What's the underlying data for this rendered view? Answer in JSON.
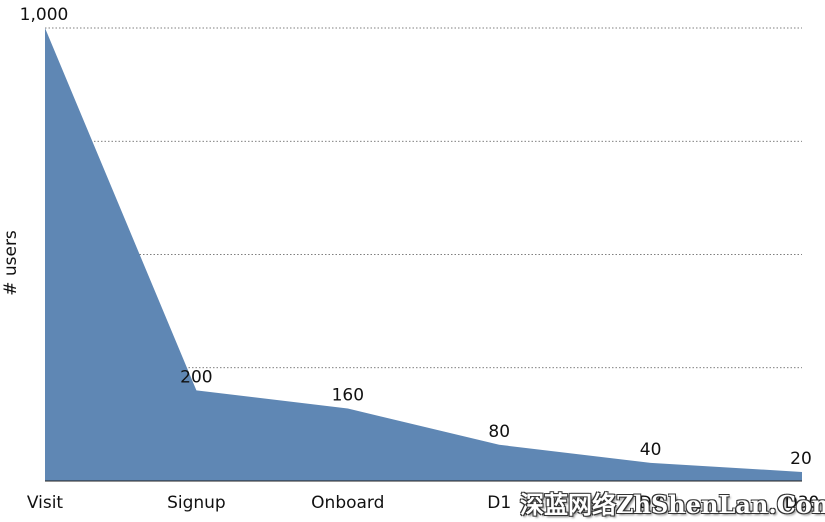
{
  "chart_data": {
    "type": "area",
    "categories": [
      "Visit",
      "Signup",
      "Onboard",
      "D1",
      "D7",
      "D30"
    ],
    "values": [
      1000,
      200,
      160,
      80,
      40,
      20
    ],
    "value_labels": [
      "1,000",
      "200",
      "160",
      "80",
      "40",
      "20"
    ],
    "ylabel": "# users",
    "xlabel": "",
    "title": "",
    "ylim": [
      0,
      1000
    ],
    "grid": "horizontal dotted",
    "color": "#5f87b4"
  },
  "watermark": "深蓝网络ZhShenLan.Com"
}
